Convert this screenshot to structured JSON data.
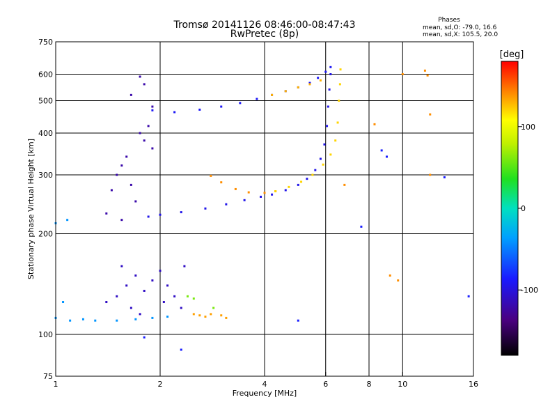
{
  "chart_data": {
    "type": "scatter",
    "title": "Tromsø 20141126 08:46:00-08:47:43",
    "subtitle": "RwPretec (8p)",
    "xlabel": "Frequency [MHz]",
    "ylabel": "Stationary phase Virtual Height [km]",
    "x_scale": "log",
    "y_scale": "log",
    "xlim": [
      1,
      16
    ],
    "ylim": [
      75,
      750
    ],
    "x_ticks": [
      1,
      2,
      4,
      6,
      8,
      10,
      16
    ],
    "y_ticks": [
      75,
      100,
      200,
      300,
      400,
      500,
      600,
      750
    ],
    "x_gridlines": [
      2,
      4,
      6,
      8,
      10
    ],
    "y_gridlines": [
      100,
      200,
      300,
      400,
      500,
      600
    ],
    "grid": true,
    "stats": {
      "heading": "Phases",
      "line_o": "mean, sd,O: -79.0, 16.6",
      "line_x": "mean, sd,X: 105.5, 20.0"
    },
    "colorbar": {
      "label": "[deg]",
      "range": [
        -180,
        180
      ],
      "ticks": [
        100,
        0,
        -100
      ],
      "tick_labels": [
        "100",
        "0",
        "-100"
      ]
    },
    "traces": [
      {
        "name": "",
        "phase": -95,
        "points": [
          [
            1.85,
            225
          ],
          [
            2.0,
            228
          ],
          [
            2.3,
            232
          ],
          [
            2.7,
            238
          ],
          [
            3.1,
            245
          ],
          [
            3.5,
            252
          ],
          [
            3.9,
            258
          ],
          [
            4.2,
            262
          ],
          [
            4.6,
            270
          ],
          [
            5.0,
            280
          ],
          [
            5.3,
            292
          ],
          [
            5.6,
            310
          ],
          [
            5.8,
            335
          ],
          [
            5.95,
            370
          ],
          [
            6.05,
            420
          ],
          [
            6.1,
            480
          ],
          [
            6.15,
            540
          ],
          [
            6.2,
            600
          ]
        ]
      },
      {
        "name": "",
        "phase": -90,
        "points": [
          [
            1.9,
            468
          ],
          [
            2.2,
            462
          ],
          [
            2.6,
            470
          ],
          [
            3.0,
            480
          ],
          [
            3.4,
            492
          ],
          [
            3.8,
            506
          ],
          [
            4.2,
            520
          ],
          [
            4.6,
            534
          ],
          [
            5.0,
            548
          ],
          [
            5.4,
            565
          ],
          [
            5.7,
            585
          ],
          [
            6.0,
            610
          ],
          [
            6.2,
            630
          ]
        ]
      },
      {
        "name": "",
        "phase": 130,
        "points": [
          [
            4.2,
            520
          ],
          [
            4.6,
            534
          ],
          [
            5.0,
            548
          ],
          [
            5.4,
            560
          ],
          [
            5.8,
            575
          ]
        ]
      },
      {
        "name": "",
        "phase": 140,
        "points": [
          [
            2.8,
            298
          ],
          [
            3.0,
            285
          ],
          [
            3.3,
            272
          ],
          [
            3.6,
            266
          ],
          [
            4.0,
            265
          ],
          [
            4.3,
            268
          ]
        ]
      },
      {
        "name": "",
        "phase": 120,
        "points": [
          [
            4.3,
            268
          ],
          [
            4.7,
            276
          ],
          [
            5.1,
            286
          ],
          [
            5.5,
            300
          ],
          [
            5.9,
            322
          ],
          [
            6.2,
            345
          ],
          [
            6.4,
            380
          ],
          [
            6.5,
            430
          ],
          [
            6.55,
            500
          ],
          [
            6.6,
            560
          ],
          [
            6.62,
            620
          ]
        ]
      },
      {
        "name": "",
        "phase": -120,
        "points": [
          [
            1.45,
            270
          ],
          [
            1.5,
            300
          ],
          [
            1.55,
            320
          ],
          [
            1.6,
            340
          ],
          [
            1.65,
            280
          ],
          [
            1.7,
            250
          ],
          [
            1.75,
            400
          ],
          [
            1.8,
            380
          ],
          [
            1.85,
            420
          ],
          [
            1.9,
            360
          ],
          [
            1.75,
            590
          ],
          [
            1.8,
            560
          ],
          [
            1.65,
            520
          ],
          [
            1.9,
            480
          ],
          [
            1.4,
            230
          ],
          [
            1.55,
            220
          ]
        ]
      },
      {
        "name": "",
        "phase": -110,
        "points": [
          [
            1.4,
            125
          ],
          [
            1.5,
            130
          ],
          [
            1.6,
            140
          ],
          [
            1.7,
            150
          ],
          [
            1.8,
            135
          ],
          [
            1.9,
            145
          ],
          [
            2.0,
            155
          ],
          [
            2.1,
            140
          ],
          [
            2.2,
            130
          ],
          [
            2.3,
            120
          ],
          [
            2.35,
            160
          ],
          [
            1.55,
            160
          ],
          [
            1.65,
            120
          ],
          [
            1.75,
            115
          ],
          [
            2.05,
            125
          ]
        ]
      },
      {
        "name": "",
        "phase": -40,
        "points": [
          [
            1.0,
            112
          ],
          [
            1.1,
            110
          ],
          [
            1.2,
            111
          ],
          [
            1.3,
            110
          ],
          [
            1.5,
            110
          ],
          [
            1.7,
            111
          ],
          [
            1.9,
            112
          ],
          [
            2.1,
            113
          ],
          [
            1.05,
            125
          ],
          [
            1.0,
            215
          ],
          [
            1.08,
            220
          ]
        ]
      },
      {
        "name": "",
        "phase": 135,
        "points": [
          [
            2.5,
            115
          ],
          [
            2.6,
            114
          ],
          [
            2.7,
            113
          ],
          [
            2.8,
            115
          ],
          [
            3.0,
            114
          ],
          [
            3.1,
            112
          ]
        ]
      },
      {
        "name": "",
        "phase": 60,
        "points": [
          [
            2.4,
            130
          ],
          [
            2.5,
            128
          ],
          [
            2.85,
            120
          ]
        ]
      },
      {
        "name": "",
        "phase": 140,
        "points": [
          [
            8.3,
            425
          ],
          [
            10.0,
            600
          ],
          [
            11.6,
            615
          ],
          [
            11.8,
            595
          ],
          [
            12.0,
            300
          ],
          [
            12.0,
            455
          ],
          [
            6.8,
            280
          ],
          [
            9.2,
            150
          ],
          [
            9.7,
            145
          ]
        ]
      },
      {
        "name": "",
        "phase": -85,
        "points": [
          [
            8.7,
            355
          ],
          [
            9.0,
            340
          ],
          [
            13.2,
            295
          ],
          [
            15.5,
            130
          ],
          [
            5.0,
            110
          ],
          [
            2.3,
            90
          ],
          [
            1.8,
            98
          ],
          [
            7.6,
            210
          ]
        ]
      }
    ]
  }
}
